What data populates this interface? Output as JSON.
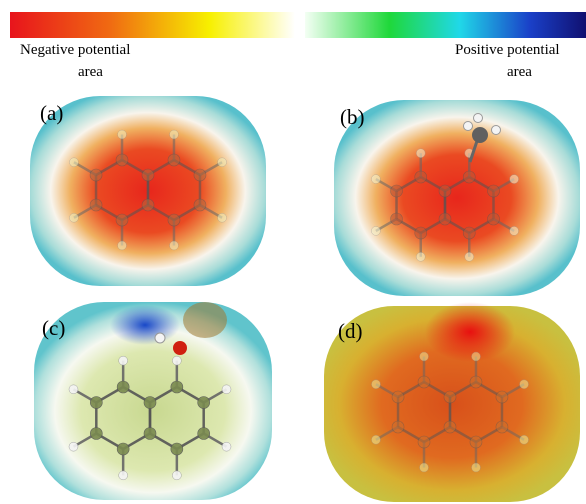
{
  "legend": {
    "negative": [
      "Negative potential",
      "area"
    ],
    "positive": [
      "Positive potential",
      "area"
    ]
  },
  "panels": [
    {
      "label": "(a)"
    },
    {
      "label": "(b)"
    },
    {
      "label": "(c)"
    },
    {
      "label": "(d)"
    }
  ]
}
